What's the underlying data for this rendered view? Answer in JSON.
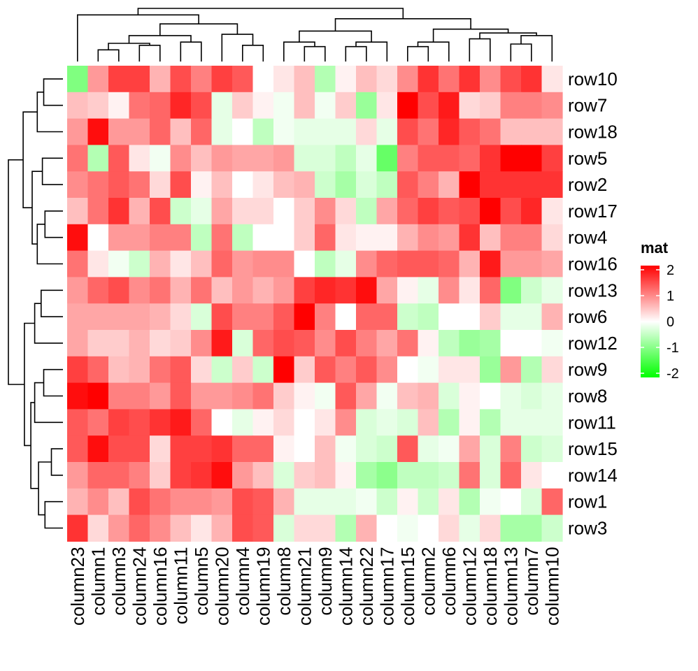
{
  "chart_data": {
    "type": "heatmap",
    "title": "",
    "xlabel": "",
    "ylabel": "",
    "columns": [
      "column23",
      "column1",
      "column3",
      "column24",
      "column16",
      "column11",
      "column5",
      "column20",
      "column4",
      "column19",
      "column8",
      "column21",
      "column9",
      "column14",
      "column22",
      "column17",
      "column15",
      "column2",
      "column6",
      "column12",
      "column18",
      "column13",
      "column7",
      "column10"
    ],
    "rows": [
      "row10",
      "row7",
      "row18",
      "row5",
      "row2",
      "row17",
      "row4",
      "row16",
      "row13",
      "row6",
      "row12",
      "row9",
      "row8",
      "row11",
      "row15",
      "row14",
      "row1",
      "row3"
    ],
    "values": [
      [
        -1.0,
        0.8,
        1.5,
        1.5,
        0.6,
        1.4,
        1.0,
        1.5,
        1.3,
        0.0,
        0.2,
        0.5,
        -0.6,
        0.1,
        0.5,
        0.3,
        0.9,
        1.6,
        1.1,
        1.6,
        0.9,
        1.4,
        1.6,
        0.2
      ],
      [
        0.5,
        0.4,
        0.1,
        1.1,
        1.2,
        1.7,
        1.4,
        -0.2,
        0.4,
        0.1,
        -0.1,
        0.5,
        -0.1,
        0.4,
        -0.8,
        0.2,
        2.1,
        1.4,
        1.8,
        0.3,
        0.4,
        1.0,
        1.0,
        0.9
      ],
      [
        0.8,
        1.9,
        0.8,
        0.8,
        1.2,
        0.5,
        1.2,
        -0.2,
        0.0,
        -0.5,
        -0.1,
        -0.2,
        -0.2,
        -0.2,
        0.3,
        -0.2,
        1.4,
        1.1,
        1.7,
        1.3,
        1.1,
        0.5,
        0.5,
        0.5
      ],
      [
        1.1,
        -0.6,
        1.3,
        0.2,
        -0.1,
        0.9,
        0.5,
        0.8,
        0.7,
        0.7,
        0.8,
        -0.3,
        -0.3,
        -0.5,
        -0.2,
        -1.2,
        1.0,
        1.3,
        1.3,
        1.2,
        1.6,
        2.2,
        2.2,
        1.5
      ],
      [
        0.9,
        1.1,
        1.3,
        1.1,
        0.3,
        1.4,
        0.1,
        0.5,
        0.0,
        0.2,
        0.5,
        0.6,
        -0.4,
        -0.7,
        -0.3,
        -0.5,
        1.3,
        1.0,
        0.6,
        2.1,
        1.6,
        1.6,
        1.6,
        1.6
      ],
      [
        0.5,
        1.1,
        1.6,
        0.6,
        1.4,
        -0.4,
        -0.2,
        0.7,
        0.3,
        0.3,
        0.0,
        0.4,
        0.9,
        0.3,
        -0.5,
        0.7,
        1.2,
        1.5,
        1.3,
        1.4,
        2.2,
        1.4,
        1.7,
        0.2
      ],
      [
        1.9,
        0.0,
        0.8,
        0.8,
        1.0,
        1.0,
        -0.5,
        1.1,
        -0.5,
        0.0,
        0.0,
        0.4,
        1.2,
        0.2,
        0.1,
        0.1,
        0.6,
        0.9,
        0.8,
        1.6,
        0.5,
        1.0,
        1.0,
        0.3
      ],
      [
        1.1,
        0.2,
        -0.1,
        -0.4,
        0.6,
        0.2,
        0.5,
        1.2,
        0.8,
        0.9,
        0.9,
        0.0,
        -0.5,
        -0.2,
        0.9,
        1.2,
        1.3,
        1.3,
        1.2,
        0.6,
        1.8,
        0.8,
        0.8,
        0.7
      ],
      [
        0.8,
        1.2,
        1.4,
        0.9,
        1.1,
        0.6,
        1.1,
        0.5,
        0.8,
        0.6,
        0.8,
        1.5,
        1.7,
        1.6,
        1.9,
        0.7,
        0.1,
        -0.2,
        0.9,
        0.2,
        1.2,
        -1.0,
        -0.4,
        -0.2
      ],
      [
        0.7,
        0.7,
        0.7,
        0.7,
        0.6,
        0.3,
        -0.3,
        1.4,
        1.0,
        1.0,
        1.3,
        2.0,
        1.0,
        0.0,
        1.2,
        1.2,
        -0.4,
        -0.5,
        0.0,
        0.0,
        0.4,
        -0.2,
        -0.2,
        0.6
      ],
      [
        0.7,
        0.4,
        0.4,
        0.6,
        0.3,
        0.4,
        0.9,
        1.8,
        -0.3,
        1.2,
        1.4,
        1.3,
        0.9,
        1.4,
        1.0,
        0.7,
        1.1,
        0.1,
        -0.5,
        -0.8,
        -0.7,
        0.0,
        0.0,
        -0.1
      ],
      [
        1.5,
        1.2,
        0.5,
        0.6,
        1.1,
        1.3,
        0.3,
        -0.4,
        0.4,
        -0.4,
        2.2,
        0.4,
        1.3,
        1.0,
        1.3,
        0.9,
        0.0,
        -0.1,
        0.2,
        0.2,
        -0.8,
        0.8,
        -0.6,
        0.3
      ],
      [
        1.9,
        2.2,
        1.0,
        1.0,
        0.8,
        1.3,
        0.8,
        0.8,
        0.9,
        1.1,
        0.4,
        0.1,
        -0.1,
        1.3,
        0.7,
        -0.1,
        0.5,
        0.6,
        -0.3,
        0.1,
        0.0,
        -0.2,
        -0.3,
        -0.2
      ],
      [
        1.3,
        1.1,
        1.5,
        1.4,
        1.6,
        1.8,
        1.2,
        0.0,
        -0.2,
        0.1,
        0.3,
        0.0,
        0.2,
        0.9,
        -0.3,
        -0.2,
        -0.3,
        0.5,
        -0.6,
        0.1,
        -0.6,
        -0.2,
        -0.2,
        -0.2
      ],
      [
        1.3,
        1.9,
        1.4,
        1.4,
        0.3,
        1.5,
        1.5,
        1.6,
        1.2,
        1.2,
        0.1,
        0.0,
        0.5,
        -0.1,
        -0.3,
        -0.4,
        1.3,
        -0.2,
        -0.1,
        0.7,
        -0.3,
        1.0,
        -0.4,
        -0.3
      ],
      [
        0.8,
        1.2,
        1.2,
        1.0,
        0.4,
        1.5,
        1.6,
        1.9,
        0.8,
        0.5,
        -0.3,
        0.4,
        0.5,
        0.1,
        -0.7,
        -0.9,
        -0.5,
        -0.5,
        -0.4,
        1.1,
        -0.3,
        1.2,
        0.2,
        0.0
      ],
      [
        0.6,
        0.9,
        0.5,
        1.4,
        1.1,
        0.9,
        0.9,
        0.8,
        1.4,
        1.3,
        0.6,
        -0.2,
        -0.2,
        -0.2,
        -0.1,
        -0.4,
        0.1,
        -0.4,
        0.2,
        -0.6,
        -0.1,
        0.0,
        -0.3,
        1.2
      ],
      [
        1.6,
        0.3,
        0.8,
        1.2,
        0.9,
        0.5,
        0.2,
        0.6,
        1.4,
        1.3,
        -0.3,
        0.3,
        0.3,
        -0.6,
        0.6,
        0.0,
        -0.1,
        0.0,
        0.3,
        -0.2,
        0.3,
        -0.7,
        -0.7,
        -0.4
      ]
    ],
    "colorscale": [
      [
        -2,
        "#00FF00"
      ],
      [
        0,
        "#FFFFFF"
      ],
      [
        2,
        "#FF0000"
      ]
    ],
    "legend": {
      "title": "mat",
      "ticks": [
        2,
        1,
        0,
        -1,
        -2
      ],
      "tick_labels": [
        "2",
        "1",
        "0",
        "-1",
        "-2"
      ],
      "position": "right"
    }
  }
}
